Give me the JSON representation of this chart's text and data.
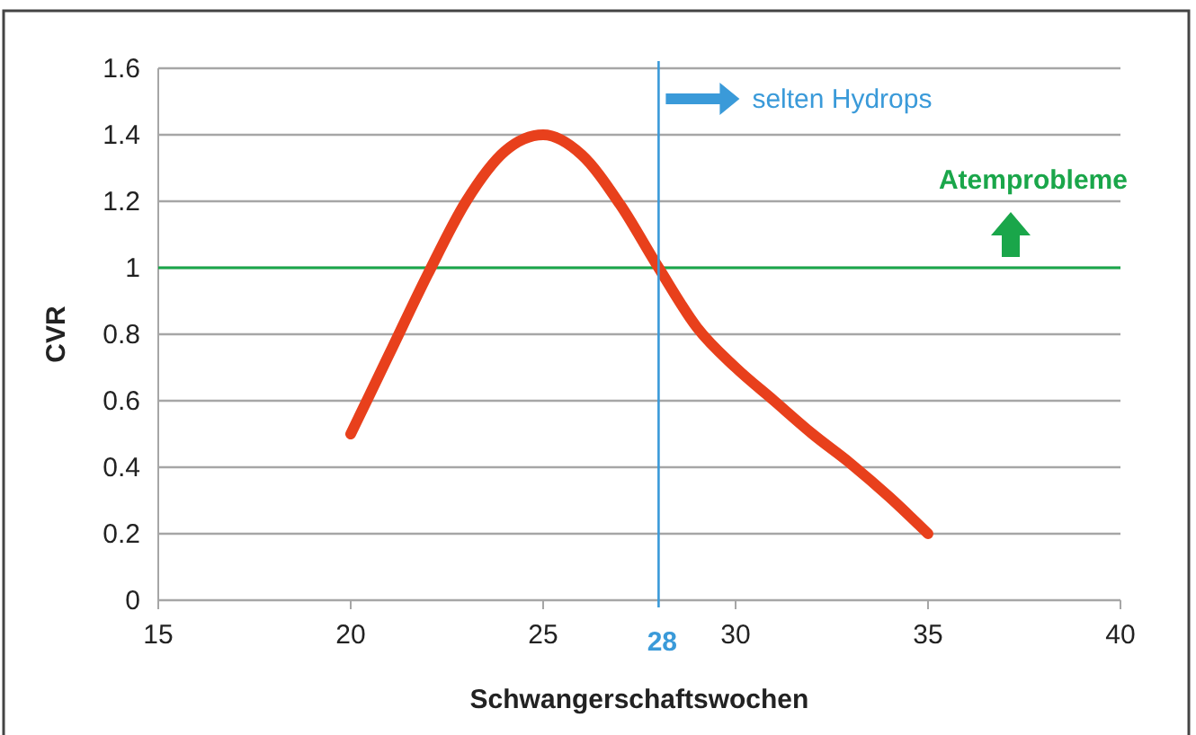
{
  "chart_data": {
    "type": "line",
    "xlabel": "Schwangerschaftswochen",
    "ylabel": "CVR",
    "x": [
      20,
      21,
      22,
      23,
      24,
      25,
      26,
      27,
      28,
      29,
      30,
      31,
      32,
      33,
      34,
      35
    ],
    "series": [
      {
        "color": "#e8401c",
        "values": [
          0.5,
          0.74,
          0.98,
          1.2,
          1.35,
          1.4,
          1.34,
          1.19,
          1.0,
          0.82,
          0.7,
          0.6,
          0.5,
          0.41,
          0.31,
          0.2
        ]
      }
    ],
    "xlim": [
      15,
      40
    ],
    "xticks": [
      15,
      20,
      25,
      30,
      35,
      40
    ],
    "ylim": [
      0,
      1.6
    ],
    "yticks": [
      0,
      0.2,
      0.4,
      0.6,
      0.8,
      1,
      1.2,
      1.4,
      1.6
    ],
    "grid": "y",
    "marker": "none",
    "line_style": "solid",
    "ref_lines": [
      {
        "axis": "x",
        "value": 28,
        "label": "selten Hydrops",
        "color": "#3a9ad9"
      },
      {
        "axis": "y",
        "value": 1,
        "label": "Atemprobleme",
        "color": "#1aa64a"
      }
    ],
    "annotations": [
      {
        "text": "28",
        "x": 28,
        "y": 0
      }
    ]
  }
}
